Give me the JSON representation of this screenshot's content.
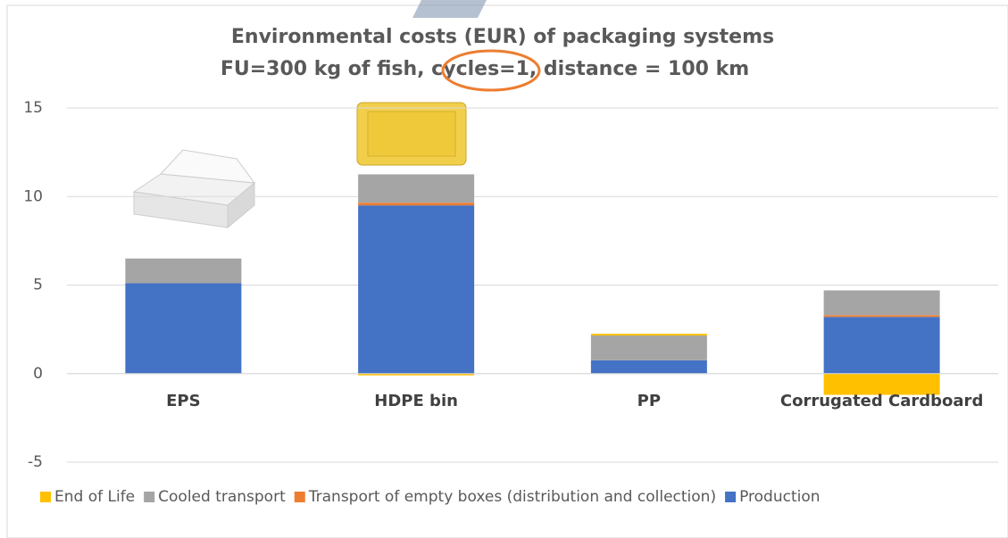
{
  "chart_data": {
    "type": "stacked-bar",
    "title": "Environmental costs (EUR) of packaging systems",
    "subtitle": "FU=300 kg of fish, cycles=1, distance = 100 km",
    "categories": [
      "EPS",
      "HDPE bin",
      "PP",
      "Corrugated Cardboard"
    ],
    "series": [
      {
        "name": "End of Life",
        "color": "#ffc000",
        "values": [
          0,
          -0.1,
          0.1,
          -1.2
        ]
      },
      {
        "name": "Cooled transport",
        "color": "#a5a5a5",
        "values": [
          1.4,
          1.6,
          1.4,
          1.4
        ]
      },
      {
        "name": "Transport of empty boxes (distribution and collection)",
        "color": "#ed7d31",
        "values": [
          0,
          0.15,
          0,
          0.1
        ]
      },
      {
        "name": "Production",
        "color": "#4472c4",
        "values": [
          5.1,
          9.5,
          0.75,
          3.2
        ]
      }
    ],
    "ylim": [
      -5,
      15
    ],
    "yticks": [
      -5,
      0,
      5,
      10,
      15
    ],
    "grid": true,
    "legend": "bottom"
  }
}
